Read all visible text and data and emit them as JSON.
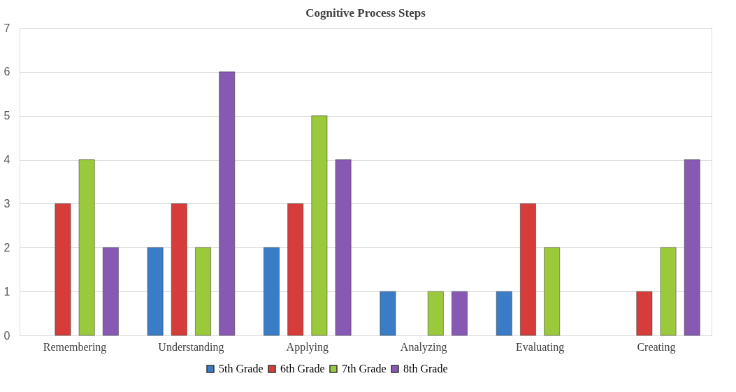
{
  "chart_data": {
    "type": "bar",
    "title": "Cognitive Process Steps",
    "categories": [
      "Remembering",
      "Understanding",
      "Applying",
      "Analyzing",
      "Evaluating",
      "Creating"
    ],
    "series": [
      {
        "name": "5th Grade",
        "color": "#3b7cc6",
        "values": [
          0,
          2,
          2,
          1,
          1,
          0
        ]
      },
      {
        "name": "6th Grade",
        "color": "#d63c3a",
        "values": [
          3,
          3,
          3,
          0,
          3,
          1
        ]
      },
      {
        "name": "7th Grade",
        "color": "#9bc93c",
        "values": [
          4,
          2,
          5,
          1,
          2,
          2
        ]
      },
      {
        "name": "8th Grade",
        "color": "#8759b3",
        "values": [
          2,
          6,
          4,
          1,
          0,
          4
        ]
      }
    ],
    "ylim": [
      0,
      7
    ],
    "yticks": [
      0,
      1,
      2,
      3,
      4,
      5,
      6,
      7
    ],
    "grid": "y",
    "legend": "bottom"
  }
}
